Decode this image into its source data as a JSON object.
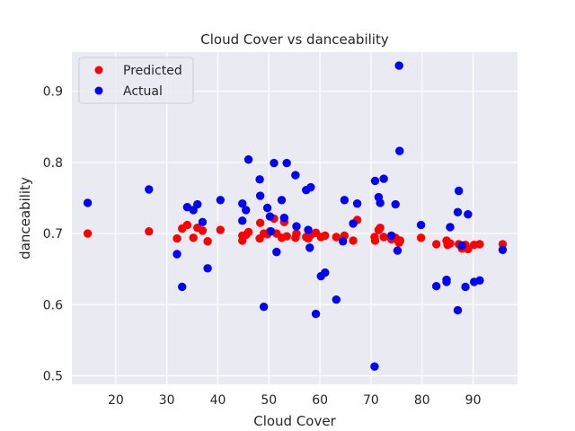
{
  "chart_data": {
    "type": "scatter",
    "title": "Cloud Cover vs danceability",
    "xlabel": "Cloud Cover",
    "ylabel": "danceability",
    "xlim": [
      11.4,
      98.7
    ],
    "ylim": [
      0.488,
      0.955
    ],
    "xticks": [
      20,
      30,
      40,
      50,
      60,
      70,
      80,
      90
    ],
    "yticks": [
      0.5,
      0.6,
      0.7,
      0.8,
      0.9
    ],
    "ytick_labels": [
      "0.5",
      "0.6",
      "0.7",
      "0.8",
      "0.9"
    ],
    "grid": true,
    "legend_position": "top-left",
    "series": [
      {
        "name": "Predicted",
        "color": "#ff0000",
        "points": [
          [
            14.5,
            0.7
          ],
          [
            26.5,
            0.703
          ],
          [
            32.0,
            0.693
          ],
          [
            33.0,
            0.707
          ],
          [
            34.0,
            0.712
          ],
          [
            35.2,
            0.694
          ],
          [
            36.0,
            0.708
          ],
          [
            37.0,
            0.704
          ],
          [
            38.0,
            0.689
          ],
          [
            40.5,
            0.705
          ],
          [
            44.8,
            0.69
          ],
          [
            44.8,
            0.697
          ],
          [
            45.5,
            0.698
          ],
          [
            46.0,
            0.702
          ],
          [
            48.2,
            0.693
          ],
          [
            48.3,
            0.715
          ],
          [
            49.0,
            0.7
          ],
          [
            49.7,
            0.699
          ],
          [
            50.2,
            0.703
          ],
          [
            51.0,
            0.721
          ],
          [
            51.5,
            0.7
          ],
          [
            52.5,
            0.694
          ],
          [
            53.0,
            0.716
          ],
          [
            53.5,
            0.696
          ],
          [
            55.2,
            0.694
          ],
          [
            55.4,
            0.7
          ],
          [
            57.3,
            0.695
          ],
          [
            57.7,
            0.693
          ],
          [
            58.2,
            0.698
          ],
          [
            59.2,
            0.701
          ],
          [
            60.2,
            0.695
          ],
          [
            61.0,
            0.697
          ],
          [
            63.2,
            0.695
          ],
          [
            64.8,
            0.697
          ],
          [
            66.5,
            0.69
          ],
          [
            67.3,
            0.719
          ],
          [
            70.7,
            0.695
          ],
          [
            70.8,
            0.69
          ],
          [
            71.5,
            0.705
          ],
          [
            71.8,
            0.708
          ],
          [
            72.5,
            0.695
          ],
          [
            74.0,
            0.692
          ],
          [
            74.8,
            0.694
          ],
          [
            75.2,
            0.691
          ],
          [
            75.5,
            0.687
          ],
          [
            75.7,
            0.69
          ],
          [
            79.8,
            0.694
          ],
          [
            82.8,
            0.685
          ],
          [
            84.8,
            0.69
          ],
          [
            85.0,
            0.684
          ],
          [
            85.5,
            0.686
          ],
          [
            87.2,
            0.685
          ],
          [
            87.8,
            0.679
          ],
          [
            88.5,
            0.684
          ],
          [
            89.0,
            0.678
          ],
          [
            90.2,
            0.684
          ],
          [
            91.3,
            0.685
          ],
          [
            95.8,
            0.685
          ]
        ]
      },
      {
        "name": "Actual",
        "color": "#0000ff",
        "points": [
          [
            14.5,
            0.743
          ],
          [
            26.5,
            0.762
          ],
          [
            32.0,
            0.671
          ],
          [
            33.0,
            0.625
          ],
          [
            34.0,
            0.737
          ],
          [
            35.2,
            0.733
          ],
          [
            36.0,
            0.741
          ],
          [
            37.0,
            0.716
          ],
          [
            38.0,
            0.651
          ],
          [
            40.5,
            0.747
          ],
          [
            44.8,
            0.742
          ],
          [
            44.8,
            0.718
          ],
          [
            45.5,
            0.733
          ],
          [
            46.0,
            0.804
          ],
          [
            48.2,
            0.776
          ],
          [
            48.3,
            0.753
          ],
          [
            49.0,
            0.597
          ],
          [
            49.7,
            0.736
          ],
          [
            50.2,
            0.724
          ],
          [
            50.4,
            0.703
          ],
          [
            51.0,
            0.799
          ],
          [
            51.5,
            0.674
          ],
          [
            52.5,
            0.747
          ],
          [
            53.0,
            0.722
          ],
          [
            53.5,
            0.799
          ],
          [
            55.2,
            0.782
          ],
          [
            55.4,
            0.71
          ],
          [
            57.3,
            0.761
          ],
          [
            57.7,
            0.705
          ],
          [
            58.0,
            0.68
          ],
          [
            58.2,
            0.765
          ],
          [
            59.2,
            0.587
          ],
          [
            60.2,
            0.64
          ],
          [
            61.0,
            0.645
          ],
          [
            63.2,
            0.607
          ],
          [
            64.5,
            0.689
          ],
          [
            64.8,
            0.747
          ],
          [
            66.5,
            0.714
          ],
          [
            67.3,
            0.742
          ],
          [
            70.7,
            0.513
          ],
          [
            70.8,
            0.774
          ],
          [
            71.5,
            0.751
          ],
          [
            71.8,
            0.743
          ],
          [
            72.5,
            0.777
          ],
          [
            74.0,
            0.697
          ],
          [
            74.8,
            0.741
          ],
          [
            75.2,
            0.676
          ],
          [
            75.5,
            0.936
          ],
          [
            75.6,
            0.816
          ],
          [
            79.8,
            0.712
          ],
          [
            82.8,
            0.626
          ],
          [
            84.8,
            0.632
          ],
          [
            84.8,
            0.635
          ],
          [
            85.5,
            0.709
          ],
          [
            87.0,
            0.592
          ],
          [
            87.0,
            0.73
          ],
          [
            87.2,
            0.76
          ],
          [
            87.8,
            0.683
          ],
          [
            88.5,
            0.625
          ],
          [
            89.0,
            0.727
          ],
          [
            90.2,
            0.632
          ],
          [
            91.3,
            0.634
          ],
          [
            95.8,
            0.677
          ]
        ]
      }
    ]
  }
}
